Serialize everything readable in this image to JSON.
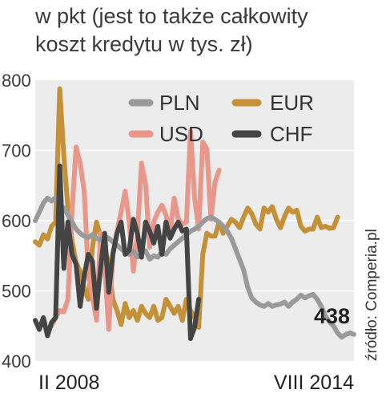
{
  "chart_data": {
    "type": "line",
    "title_lines": [
      "w pkt (jest to także całkowity",
      "koszt kredytu w tys. zł)"
    ],
    "ylim": [
      400,
      800
    ],
    "yticks": [
      "800",
      "700",
      "600",
      "500",
      "400"
    ],
    "ytick_values": [
      800,
      700,
      600,
      500,
      400
    ],
    "x_start_label": "II 2008",
    "x_end_label": "VIII 2014",
    "x_range": [
      0,
      78
    ],
    "grid": true,
    "legend_position": "top",
    "source": "źródło: Comperia.pl",
    "final_value_label": "438",
    "series": [
      {
        "name": "PLN",
        "color": "#9a9a9a",
        "x": [
          0,
          1,
          2,
          3,
          4,
          5,
          6,
          7,
          8,
          9,
          10,
          11,
          12,
          13,
          14,
          15,
          16,
          17,
          18,
          19,
          20,
          21,
          22,
          23,
          24,
          25,
          26,
          27,
          28,
          29,
          30,
          31,
          32,
          33,
          34,
          35,
          36,
          37,
          38,
          39,
          40,
          41,
          42,
          43,
          44,
          45,
          46,
          47,
          48,
          49,
          50,
          51,
          52,
          53,
          54,
          55,
          56,
          57,
          58,
          59,
          60,
          61,
          62,
          63,
          64,
          65,
          66,
          67,
          68,
          69,
          70,
          71,
          72,
          73,
          74,
          75,
          76,
          77,
          78
        ],
        "values": [
          600,
          612,
          625,
          632,
          628,
          633,
          622,
          618,
          608,
          598,
          588,
          582,
          578,
          576,
          580,
          575,
          572,
          578,
          575,
          570,
          565,
          560,
          555,
          552,
          556,
          548,
          553,
          557,
          545,
          550,
          548,
          556,
          552,
          560,
          565,
          570,
          575,
          580,
          585,
          588,
          592,
          598,
          603,
          605,
          602,
          598,
          592,
          585,
          575,
          560,
          545,
          530,
          505,
          490,
          484,
          480,
          478,
          482,
          478,
          480,
          481,
          484,
          478,
          484,
          488,
          494,
          490,
          493,
          495,
          488,
          478,
          464,
          456,
          450,
          440,
          434,
          438,
          440,
          438
        ]
      },
      {
        "name": "USD",
        "color": "#e8978a",
        "x": [
          4,
          5,
          6,
          7,
          8,
          9,
          10,
          11,
          12,
          13,
          14,
          15,
          16,
          17,
          18,
          19,
          20,
          21,
          22,
          23,
          24,
          25,
          26,
          27,
          28,
          29,
          30,
          31,
          32,
          33,
          34,
          35,
          36,
          37,
          38,
          39,
          40,
          41,
          42,
          43,
          44,
          45
        ],
        "values": [
          450,
          462,
          472,
          470,
          488,
          612,
          705,
          682,
          642,
          522,
          492,
          458,
          582,
          535,
          445,
          552,
          585,
          612,
          642,
          598,
          528,
          582,
          682,
          652,
          562,
          598,
          612,
          622,
          608,
          582,
          632,
          602,
          595,
          598,
          728,
          632,
          588,
          712,
          702,
          602,
          655,
          672
        ]
      },
      {
        "name": "EUR",
        "color": "#c49139",
        "x": [
          0,
          1,
          2,
          3,
          4,
          5,
          6,
          7,
          8,
          9,
          10,
          11,
          12,
          13,
          14,
          15,
          16,
          17,
          18,
          19,
          20,
          21,
          22,
          23,
          24,
          25,
          26,
          27,
          28,
          29,
          30,
          31,
          32,
          33,
          34,
          35,
          36,
          37,
          38,
          39,
          40,
          41,
          42,
          43,
          44,
          45,
          46,
          47,
          48,
          49,
          50,
          51,
          52,
          53,
          54,
          55,
          56,
          57,
          58,
          59,
          60,
          61,
          62,
          63,
          64,
          65,
          66,
          67,
          68,
          69,
          70,
          71,
          72,
          73,
          74
        ],
        "values": [
          570,
          565,
          580,
          574,
          592,
          598,
          788,
          692,
          618,
          572,
          540,
          528,
          502,
          488,
          562,
          598,
          578,
          562,
          538,
          488,
          472,
          452,
          482,
          462,
          472,
          458,
          478,
          468,
          462,
          478,
          458,
          462,
          488,
          478,
          468,
          478,
          458,
          488,
          472,
          462,
          448,
          552,
          582,
          578,
          578,
          598,
          582,
          592,
          602,
          598,
          590,
          605,
          618,
          610,
          595,
          588,
          618,
          612,
          620,
          602,
          590,
          606,
          618,
          612,
          615,
          592,
          585,
          588,
          588,
          605,
          590,
          592,
          589,
          590,
          605
        ]
      },
      {
        "name": "CHF",
        "color": "#444444",
        "x": [
          0,
          1,
          2,
          3,
          4,
          5,
          6,
          7,
          8,
          9,
          10,
          11,
          12,
          13,
          14,
          15,
          16,
          17,
          18,
          19,
          20,
          21,
          22,
          23,
          24,
          25,
          26,
          27,
          28,
          29,
          30,
          31,
          32,
          33,
          34,
          35,
          36,
          37,
          38,
          39,
          40
        ],
        "values": [
          458,
          445,
          462,
          436,
          455,
          462,
          678,
          532,
          598,
          552,
          538,
          478,
          522,
          552,
          542,
          475,
          532,
          582,
          498,
          552,
          582,
          598,
          552,
          558,
          602,
          582,
          548,
          598,
          585,
          568,
          592,
          552,
          598,
          575,
          588,
          598,
          585,
          588,
          432,
          448,
          488
        ]
      }
    ],
    "legend": [
      {
        "series": 0,
        "label": "PLN"
      },
      {
        "series": 2,
        "label": "EUR"
      },
      {
        "series": 1,
        "label": "USD"
      },
      {
        "series": 3,
        "label": "CHF"
      }
    ]
  }
}
